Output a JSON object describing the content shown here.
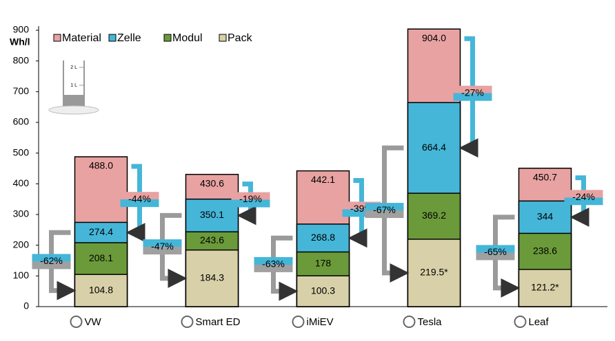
{
  "chart_data": {
    "type": "overlap-bar",
    "y_unit_label": "Wh/l",
    "categories": [
      "VW",
      "Smart ED",
      "iMiEV",
      "Tesla",
      "Leaf"
    ],
    "series": [
      {
        "name": "Material",
        "color": "#e8a2a2",
        "values": [
          488.0,
          430.6,
          442.1,
          904.0,
          450.7
        ],
        "value_labels": [
          "488.0",
          "430.6",
          "442.1",
          "904.0",
          "450.7"
        ]
      },
      {
        "name": "Zelle",
        "color": "#45b6d8",
        "values": [
          274.4,
          350.1,
          268.8,
          664.4,
          344
        ],
        "value_labels": [
          "274.4",
          "350.1",
          "268.8",
          "664.4",
          "344"
        ]
      },
      {
        "name": "Modul",
        "color": "#6b9a3a",
        "values": [
          208.1,
          243.6,
          178,
          369.2,
          238.6
        ],
        "value_labels": [
          "208.1",
          "243.6",
          "178",
          "369.2",
          "238.6"
        ]
      },
      {
        "name": "Pack",
        "color": "#d8d0a8",
        "values": [
          104.8,
          184.3,
          100.3,
          219.5,
          121.2
        ],
        "value_labels": [
          "104.8",
          "184.3",
          "100.3",
          "219.5*",
          "121.2*"
        ]
      }
    ],
    "cell_reduction_labels": [
      "-44%",
      "-19%",
      "-39%",
      "-27%",
      "-24%"
    ],
    "pack_reduction_labels": [
      "-62%",
      "-47%",
      "-63%",
      "-67%",
      "-65%"
    ],
    "icon_labels": [
      "2 L",
      "1 L"
    ],
    "ylim": [
      0,
      900
    ],
    "yticks": [
      0,
      100,
      200,
      300,
      400,
      500,
      600,
      700,
      800,
      900
    ],
    "legend": "top-left"
  }
}
